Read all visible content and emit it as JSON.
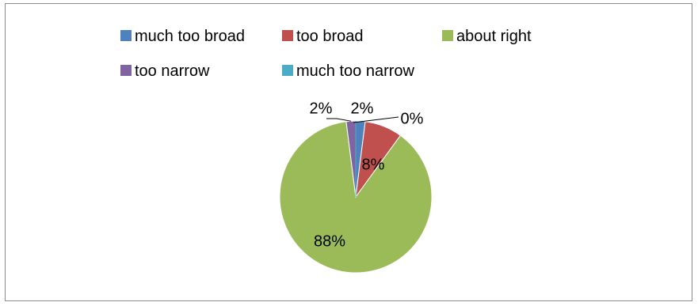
{
  "chart_data": {
    "type": "pie",
    "title": "",
    "categories": [
      "much too broad",
      "too broad",
      "about right",
      "too narrow",
      "much too narrow"
    ],
    "values": [
      2,
      8,
      88,
      2,
      0
    ],
    "data_labels": [
      "2%",
      "8%",
      "88%",
      "2%",
      "0%"
    ],
    "colors": [
      "#4f81bd",
      "#c0504d",
      "#9bbb59",
      "#8064a2",
      "#4bacc6"
    ],
    "legend_position": "top",
    "start_angle_deg": 0,
    "direction": "clockwise"
  }
}
